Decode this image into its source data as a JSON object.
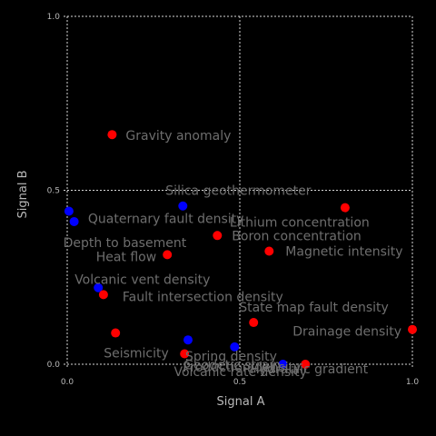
{
  "chart_data": {
    "type": "scatter",
    "title": "",
    "xlabel": "Signal A",
    "ylabel": "Signal B",
    "xlim": [
      0,
      1
    ],
    "ylim": [
      0,
      1
    ],
    "xticks": [
      0.0,
      0.5,
      1.0
    ],
    "yticks": [
      0.0,
      0.5,
      1.0
    ],
    "xtick_labels": [
      "0.0",
      "0.5",
      "1.0"
    ],
    "ytick_labels": [
      "0.0",
      "0.5",
      "1.0"
    ],
    "grid": true,
    "colors": {
      "red": "#ff0000",
      "blue": "#0000ff",
      "label": "#6e6e6e",
      "background": "#000000"
    },
    "points": [
      {
        "label": "Gravity anomaly",
        "x": 0.13,
        "y": 0.66,
        "color": "red"
      },
      {
        "label": "Silica geothermometer",
        "x": 0.335,
        "y": 0.455,
        "color": "blue"
      },
      {
        "label": "Lithium concentration",
        "x": 0.805,
        "y": 0.45,
        "color": "red"
      },
      {
        "label": "Quaternary fault density",
        "x": 0.005,
        "y": 0.44,
        "color": "blue"
      },
      {
        "label": "Depth to basement",
        "x": 0.02,
        "y": 0.41,
        "color": "blue"
      },
      {
        "label": "Boron concentration",
        "x": 0.435,
        "y": 0.37,
        "color": "red"
      },
      {
        "label": "Magnetic intensity",
        "x": 0.585,
        "y": 0.325,
        "color": "red"
      },
      {
        "label": "Heat flow",
        "x": 0.29,
        "y": 0.315,
        "color": "red"
      },
      {
        "label": "Volcanic vent density",
        "x": 0.09,
        "y": 0.22,
        "color": "blue"
      },
      {
        "label": "Fault intersection density",
        "x": 0.105,
        "y": 0.2,
        "color": "red"
      },
      {
        "label": "State map fault density",
        "x": 0.54,
        "y": 0.12,
        "color": "red"
      },
      {
        "label": "Drainage density",
        "x": 1.0,
        "y": 0.1,
        "color": "red"
      },
      {
        "label": "Seismicity",
        "x": 0.14,
        "y": 0.09,
        "color": "red"
      },
      {
        "label": "Hydraulic gradient",
        "x": 0.485,
        "y": 0.05,
        "color": "blue"
      },
      {
        "label": "Spring density",
        "x": 0.35,
        "y": 0.07,
        "color": "blue"
      },
      {
        "label": "Geodetic strain",
        "x": 0.34,
        "y": 0.03,
        "color": "red"
      },
      {
        "label": "Volcanic rate density",
        "x": 0.625,
        "y": 0.0,
        "color": "blue"
      },
      {
        "label": "Production density",
        "x": 0.69,
        "y": 0.0,
        "color": "red"
      }
    ]
  }
}
